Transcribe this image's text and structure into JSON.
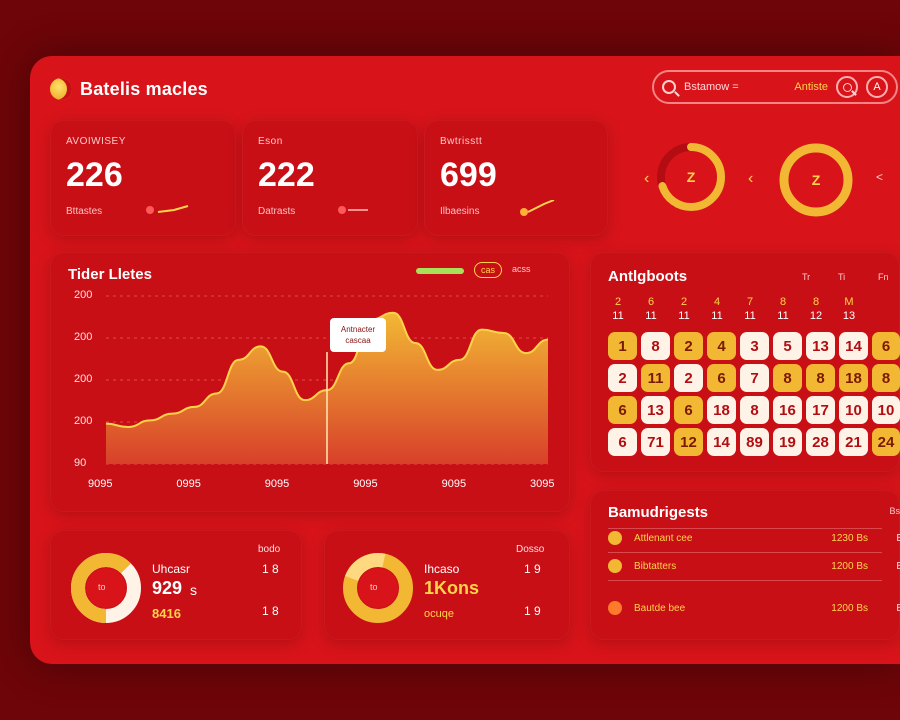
{
  "header": {
    "app_title": "Batelis macles",
    "search_placeholder": "Bstamow =",
    "search_action": "Antiste",
    "search_btn_icon": "search-icon",
    "profile_btn_label": "A"
  },
  "stats": [
    {
      "label": "AVOIWISEY",
      "value": "226",
      "sub": "Bttastes"
    },
    {
      "label": "Eson",
      "value": "222",
      "sub": "Datrasts"
    },
    {
      "label": "Bwtrisstt",
      "value": "699",
      "sub": "Ilbaesins"
    }
  ],
  "rings": [
    {
      "center": "Z",
      "progress": 0.7
    },
    {
      "center": "Z",
      "progress": 1.0
    }
  ],
  "ring_arrows": {
    "left": "‹",
    "right": "‹"
  },
  "trend": {
    "title": "Tider Lletes",
    "legend_pill": "cas",
    "legend_text": "acss",
    "tooltip_line1": "Antnacter",
    "tooltip_line2": "cascaa"
  },
  "chart_data": {
    "type": "area",
    "yticks": [
      "200",
      "200",
      "200",
      "200",
      "90"
    ],
    "xticks": [
      "9095",
      "0995",
      "9095",
      "9095",
      "9095",
      "3095"
    ],
    "x": [
      0,
      1,
      2,
      3,
      4,
      5,
      6,
      7,
      8,
      9,
      10,
      11,
      12,
      13,
      14,
      15,
      16,
      17,
      18,
      19,
      20
    ],
    "series": [
      {
        "values": [
          0.24,
          0.22,
          0.26,
          0.3,
          0.34,
          0.42,
          0.62,
          0.7,
          0.55,
          0.38,
          0.44,
          0.6,
          0.86,
          0.9,
          0.72,
          0.56,
          0.62,
          0.8,
          0.78,
          0.66,
          0.74
        ]
      }
    ],
    "highlight_index": 10,
    "ylim": [
      0,
      1
    ],
    "grid": true,
    "colors": {
      "fill_top": "#f2b834",
      "fill_bottom": "#d8402a",
      "line": "#ffd44a"
    }
  },
  "calendar": {
    "title": "Antlgboots",
    "mini_labels": [
      "Tr",
      "Ti",
      "Fn"
    ],
    "head_row1": [
      "2",
      "6",
      "2",
      "4",
      "7",
      "8",
      "8",
      "M"
    ],
    "head_row2": [
      "11",
      "11",
      "11",
      "11",
      "11",
      "11",
      "12",
      "13"
    ],
    "rows": [
      [
        {
          "n": "1",
          "s": "g"
        },
        {
          "n": "8",
          "s": "w"
        },
        {
          "n": "2",
          "s": "g"
        },
        {
          "n": "4",
          "s": "g"
        },
        {
          "n": "3",
          "s": "w"
        },
        {
          "n": "5",
          "s": "w"
        },
        {
          "n": "13",
          "s": "w"
        },
        {
          "n": "14",
          "s": "w"
        },
        {
          "n": "6",
          "s": "g"
        }
      ],
      [
        {
          "n": "2",
          "s": "w"
        },
        {
          "n": "11",
          "s": "g"
        },
        {
          "n": "2",
          "s": "w"
        },
        {
          "n": "6",
          "s": "g"
        },
        {
          "n": "7",
          "s": "w"
        },
        {
          "n": "8",
          "s": "g"
        },
        {
          "n": "8",
          "s": "g"
        },
        {
          "n": "18",
          "s": "g"
        },
        {
          "n": "8",
          "s": "g"
        }
      ],
      [
        {
          "n": "6",
          "s": "g"
        },
        {
          "n": "13",
          "s": "w"
        },
        {
          "n": "6",
          "s": "g"
        },
        {
          "n": "18",
          "s": "w"
        },
        {
          "n": "8",
          "s": "w"
        },
        {
          "n": "16",
          "s": "w"
        },
        {
          "n": "17",
          "s": "w"
        },
        {
          "n": "10",
          "s": "w"
        },
        {
          "n": "10",
          "s": "w"
        }
      ],
      [
        {
          "n": "6",
          "s": "w"
        },
        {
          "n": "71",
          "s": "w"
        },
        {
          "n": "12",
          "s": "g"
        },
        {
          "n": "14",
          "s": "w"
        },
        {
          "n": "89",
          "s": "w"
        },
        {
          "n": "19",
          "s": "w"
        },
        {
          "n": "28",
          "s": "w"
        },
        {
          "n": "21",
          "s": "w"
        },
        {
          "n": "24",
          "s": "g"
        }
      ]
    ]
  },
  "list": {
    "title": "Bamudrigests",
    "more": "Bs",
    "rows": [
      {
        "label": "Attlenant cee",
        "value": "1230 Bs",
        "extra": "Bs"
      },
      {
        "label": "Bibtatters",
        "value": "1200 Bs",
        "extra": "Bs"
      },
      {
        "label": "Bautde bee",
        "value": "1200 Bs",
        "extra": "Bs"
      }
    ]
  },
  "donuts": [
    {
      "corner": "bodo",
      "label": "Uhcasr",
      "big": "929",
      "big_suffix": "s",
      "sub": "8416",
      "center": "to",
      "col1": "1 8",
      "col2": "1 8"
    },
    {
      "corner": "Dosso",
      "label": "Ihcaso",
      "big": "",
      "big_suffix": "",
      "sub": "1Kons",
      "sub2": "ocuqe",
      "center": "to",
      "col1": "1 9",
      "col2": "1 9"
    }
  ]
}
